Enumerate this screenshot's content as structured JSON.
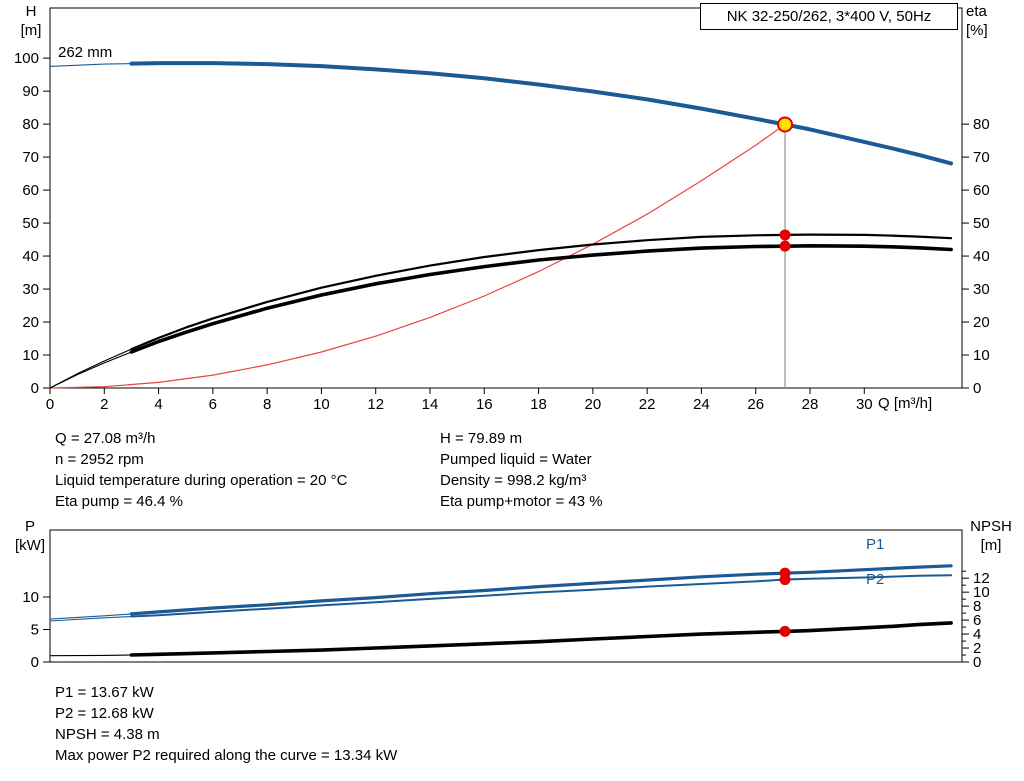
{
  "title_box": "NK 32-250/262, 3*400 V, 50Hz",
  "top_chart_texts": {
    "impeller": "262 mm",
    "h1": "H",
    "h2": "[m]",
    "e1": "eta",
    "e2": "[%]",
    "q": "Q [m³/h]"
  },
  "bottom_chart_texts": {
    "p1": "P",
    "p2": "[kW]",
    "n1": "NPSH",
    "n2": "[m]",
    "p1_series": "P1",
    "p2_series": "P2"
  },
  "info_top_left": [
    "Q = 27.08 m³/h",
    "n = 2952 rpm",
    "Liquid temperature during operation = 20 °C",
    "Eta pump = 46.4 %"
  ],
  "info_top_right": [
    "H = 79.89 m",
    "Pumped liquid = Water",
    "Density = 998.2 kg/m³",
    "Eta pump+motor = 43 %"
  ],
  "info_bottom": [
    "P1 = 13.67 kW",
    "P2 = 12.68 kW",
    "NPSH = 4.38 m",
    "Max power P2 required along the curve = 13.34 kW"
  ],
  "colors": {
    "curve_blue": "#1c5a96",
    "curve_black": "#000000",
    "marker_red": "#e60000",
    "system_red": "#e8443c",
    "duty_yellow": "#ffe000",
    "duty_line_gray": "#7f7f7f"
  },
  "chart_data": [
    {
      "id": "top",
      "type": "line",
      "title": "NK 32-250/262, 3*400 V, 50Hz",
      "xlabel": "Q [m³/h]",
      "x_range": [
        0,
        33.6
      ],
      "x_ticks": [
        0,
        2,
        4,
        6,
        8,
        10,
        12,
        14,
        16,
        18,
        20,
        22,
        24,
        26,
        28,
        30
      ],
      "left_axis": {
        "label": "H [m]",
        "range": [
          0,
          115.2
        ],
        "ticks": [
          0,
          10,
          20,
          30,
          40,
          50,
          60,
          70,
          80,
          90,
          100
        ]
      },
      "right_axis": {
        "label": "eta [%]",
        "range": [
          0,
          115.2
        ],
        "ticks": [
          0,
          10,
          20,
          30,
          40,
          50,
          60,
          70,
          80
        ]
      },
      "annotation": "262 mm",
      "duty_line": {
        "x": 27.08,
        "y": 79.89
      },
      "series": [
        {
          "name": "system-curve",
          "axis": "left",
          "color": "#e8443c",
          "width": 1.2,
          "points": [
            [
              0,
              0
            ],
            [
              2,
              0.4
            ],
            [
              4,
              1.7
            ],
            [
              6,
              3.9
            ],
            [
              8,
              7.0
            ],
            [
              10,
              10.9
            ],
            [
              12,
              15.7
            ],
            [
              14,
              21.4
            ],
            [
              16,
              27.9
            ],
            [
              18,
              35.3
            ],
            [
              20,
              43.6
            ],
            [
              22,
              52.7
            ],
            [
              24,
              62.8
            ],
            [
              26,
              73.6
            ],
            [
              27.08,
              79.89
            ]
          ]
        },
        {
          "name": "eta-pump",
          "axis": "left",
          "color": "#000000",
          "width": 2.2,
          "thin_until": 3,
          "points": [
            [
              0,
              0
            ],
            [
              1,
              4.3
            ],
            [
              2,
              8.2
            ],
            [
              3,
              11.8
            ],
            [
              4,
              15.2
            ],
            [
              5,
              18.3
            ],
            [
              6,
              21.1
            ],
            [
              8,
              26.1
            ],
            [
              10,
              30.4
            ],
            [
              12,
              34.0
            ],
            [
              14,
              37.1
            ],
            [
              16,
              39.7
            ],
            [
              18,
              41.8
            ],
            [
              20,
              43.5
            ],
            [
              22,
              44.8
            ],
            [
              24,
              45.8
            ],
            [
              26,
              46.3
            ],
            [
              27.08,
              46.4
            ],
            [
              28,
              46.5
            ],
            [
              30,
              46.4
            ],
            [
              31,
              46.2
            ],
            [
              32,
              45.9
            ],
            [
              33.2,
              45.4
            ]
          ]
        },
        {
          "name": "eta-pump-motor",
          "axis": "left",
          "color": "#000000",
          "width": 3.6,
          "thin_until": 3,
          "points": [
            [
              0,
              0
            ],
            [
              1,
              4.0
            ],
            [
              2,
              7.6
            ],
            [
              3,
              10.9
            ],
            [
              4,
              14.1
            ],
            [
              5,
              16.9
            ],
            [
              6,
              19.5
            ],
            [
              8,
              24.2
            ],
            [
              10,
              28.2
            ],
            [
              12,
              31.6
            ],
            [
              14,
              34.4
            ],
            [
              16,
              36.8
            ],
            [
              18,
              38.8
            ],
            [
              20,
              40.3
            ],
            [
              22,
              41.5
            ],
            [
              24,
              42.4
            ],
            [
              26,
              42.9
            ],
            [
              27.08,
              43.0
            ],
            [
              28,
              43.1
            ],
            [
              30,
              43.0
            ],
            [
              31,
              42.8
            ],
            [
              32,
              42.5
            ],
            [
              33.2,
              42.0
            ]
          ]
        },
        {
          "name": "head-262mm",
          "axis": "left",
          "color": "#1c5a96",
          "width": 4,
          "thin_until": 3,
          "points": [
            [
              0,
              97.5
            ],
            [
              2,
              98.2
            ],
            [
              3,
              98.35
            ],
            [
              4,
              98.5
            ],
            [
              6,
              98.5
            ],
            [
              8,
              98.2
            ],
            [
              10,
              97.6
            ],
            [
              12,
              96.6
            ],
            [
              14,
              95.4
            ],
            [
              16,
              93.9
            ],
            [
              18,
              92.0
            ],
            [
              20,
              89.9
            ],
            [
              22,
              87.5
            ],
            [
              24,
              84.7
            ],
            [
              26,
              81.6
            ],
            [
              27.08,
              79.89
            ],
            [
              28,
              78.4
            ],
            [
              30,
              74.6
            ],
            [
              31,
              72.7
            ],
            [
              32,
              70.7
            ],
            [
              33.2,
              68.1
            ]
          ]
        }
      ],
      "markers": [
        {
          "name": "eta-pump-dot",
          "style": "dot",
          "x": 27.08,
          "y": 46.4,
          "axis": "left"
        },
        {
          "name": "eta-pump-motor-dot",
          "style": "dot",
          "x": 27.08,
          "y": 43.0,
          "axis": "left"
        },
        {
          "name": "duty-point",
          "style": "duty",
          "x": 27.08,
          "y": 79.89,
          "axis": "left"
        }
      ]
    },
    {
      "id": "bottom",
      "type": "line",
      "title": "Power and NPSH curves",
      "x_range": [
        0,
        33.6
      ],
      "x_ticks": [],
      "left_axis": {
        "label": "P [kW]",
        "range": [
          0,
          20.3
        ],
        "ticks": [
          0,
          5,
          10
        ]
      },
      "right_axis": {
        "label": "NPSH [m]",
        "range": [
          0,
          18.9
        ],
        "ticks": [
          0,
          2,
          4,
          6,
          8,
          10,
          12
        ],
        "minor_ticks": [
          1,
          3,
          5,
          7,
          9,
          11,
          13
        ]
      },
      "series": [
        {
          "name": "p2",
          "axis": "left",
          "color": "#1c5a96",
          "width": 2,
          "thin_until": 3,
          "points": [
            [
              0,
              6.3
            ],
            [
              2,
              6.8
            ],
            [
              3,
              7.0
            ],
            [
              4,
              7.2
            ],
            [
              6,
              7.7
            ],
            [
              8,
              8.2
            ],
            [
              10,
              8.7
            ],
            [
              12,
              9.2
            ],
            [
              14,
              9.7
            ],
            [
              16,
              10.2
            ],
            [
              18,
              10.7
            ],
            [
              20,
              11.1
            ],
            [
              22,
              11.6
            ],
            [
              24,
              12.0
            ],
            [
              26,
              12.4
            ],
            [
              27.08,
              12.68
            ],
            [
              28,
              12.8
            ],
            [
              30,
              13.0
            ],
            [
              32,
              13.25
            ],
            [
              33.2,
              13.34
            ]
          ]
        },
        {
          "name": "p1",
          "axis": "left",
          "color": "#1c5a96",
          "width": 3.2,
          "thin_until": 3,
          "points": [
            [
              0,
              6.6
            ],
            [
              2,
              7.1
            ],
            [
              3,
              7.4
            ],
            [
              4,
              7.7
            ],
            [
              6,
              8.3
            ],
            [
              8,
              8.8
            ],
            [
              10,
              9.4
            ],
            [
              12,
              9.9
            ],
            [
              14,
              10.5
            ],
            [
              16,
              11.0
            ],
            [
              18,
              11.6
            ],
            [
              20,
              12.1
            ],
            [
              22,
              12.6
            ],
            [
              24,
              13.1
            ],
            [
              26,
              13.5
            ],
            [
              27.08,
              13.67
            ],
            [
              28,
              13.8
            ],
            [
              30,
              14.2
            ],
            [
              32,
              14.6
            ],
            [
              33.2,
              14.8
            ]
          ]
        },
        {
          "name": "npsh",
          "axis": "right",
          "color": "#000000",
          "width": 3.6,
          "thin_until": 3,
          "points": [
            [
              0,
              0.9
            ],
            [
              2,
              0.95
            ],
            [
              3,
              1.0
            ],
            [
              4,
              1.1
            ],
            [
              6,
              1.3
            ],
            [
              8,
              1.5
            ],
            [
              10,
              1.7
            ],
            [
              12,
              2.0
            ],
            [
              14,
              2.3
            ],
            [
              16,
              2.6
            ],
            [
              18,
              2.9
            ],
            [
              20,
              3.3
            ],
            [
              22,
              3.65
            ],
            [
              24,
              4.0
            ],
            [
              26,
              4.25
            ],
            [
              27.08,
              4.38
            ],
            [
              28,
              4.5
            ],
            [
              30,
              4.9
            ],
            [
              31,
              5.1
            ],
            [
              32,
              5.35
            ],
            [
              33.2,
              5.6
            ]
          ]
        }
      ],
      "markers": [
        {
          "name": "p1-dot",
          "style": "dot",
          "x": 27.08,
          "y": 13.67,
          "axis": "left"
        },
        {
          "name": "p2-dot",
          "style": "dot",
          "x": 27.08,
          "y": 12.68,
          "axis": "left"
        },
        {
          "name": "npsh-dot",
          "style": "dot",
          "x": 27.08,
          "y": 4.38,
          "axis": "right"
        }
      ]
    }
  ]
}
